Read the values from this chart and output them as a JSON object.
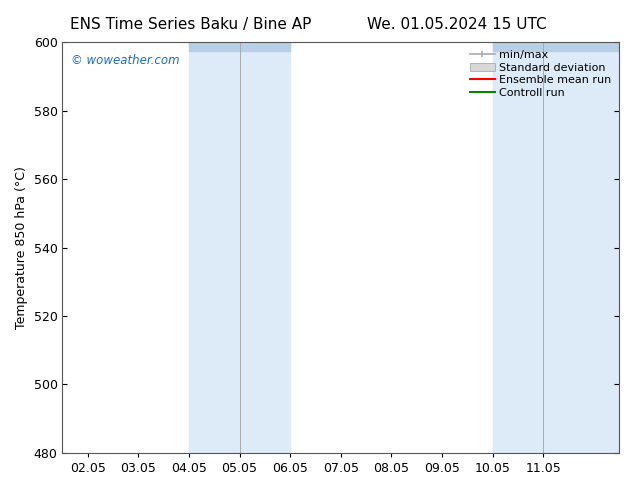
{
  "title_left": "ENS Time Series Baku / Bine AP",
  "title_right": "We. 01.05.2024 15 UTC",
  "ylabel": "Temperature 850 hPa (°C)",
  "xlabel_ticks": [
    "02.05",
    "03.05",
    "04.05",
    "05.05",
    "06.05",
    "07.05",
    "08.05",
    "09.05",
    "10.05",
    "11.05"
  ],
  "ylim": [
    480,
    600
  ],
  "yticks": [
    480,
    500,
    520,
    540,
    560,
    580,
    600
  ],
  "background_color": "#ffffff",
  "plot_bg_color": "#ffffff",
  "shaded_regions": [
    {
      "x_start": 2.0,
      "x_end": 4.0,
      "color": "#ddeaf8"
    },
    {
      "x_start": 8.0,
      "x_end": 10.5,
      "color": "#ddeaf8"
    }
  ],
  "divider_lines": [
    3.0,
    9.0
  ],
  "watermark": "© woweather.com",
  "watermark_color": "#1a6fc4",
  "legend_labels": [
    "min/max",
    "Standard deviation",
    "Ensemble mean run",
    "Controll run"
  ],
  "legend_colors": [
    "#aaaaaa",
    "#cccccc",
    "#ff0000",
    "#008800"
  ],
  "title_fontsize": 11,
  "tick_fontsize": 9,
  "label_fontsize": 9,
  "xlim": [
    -0.5,
    10.5
  ],
  "top_bar_y": 597.5,
  "top_bar_color": "#b8cfe8"
}
